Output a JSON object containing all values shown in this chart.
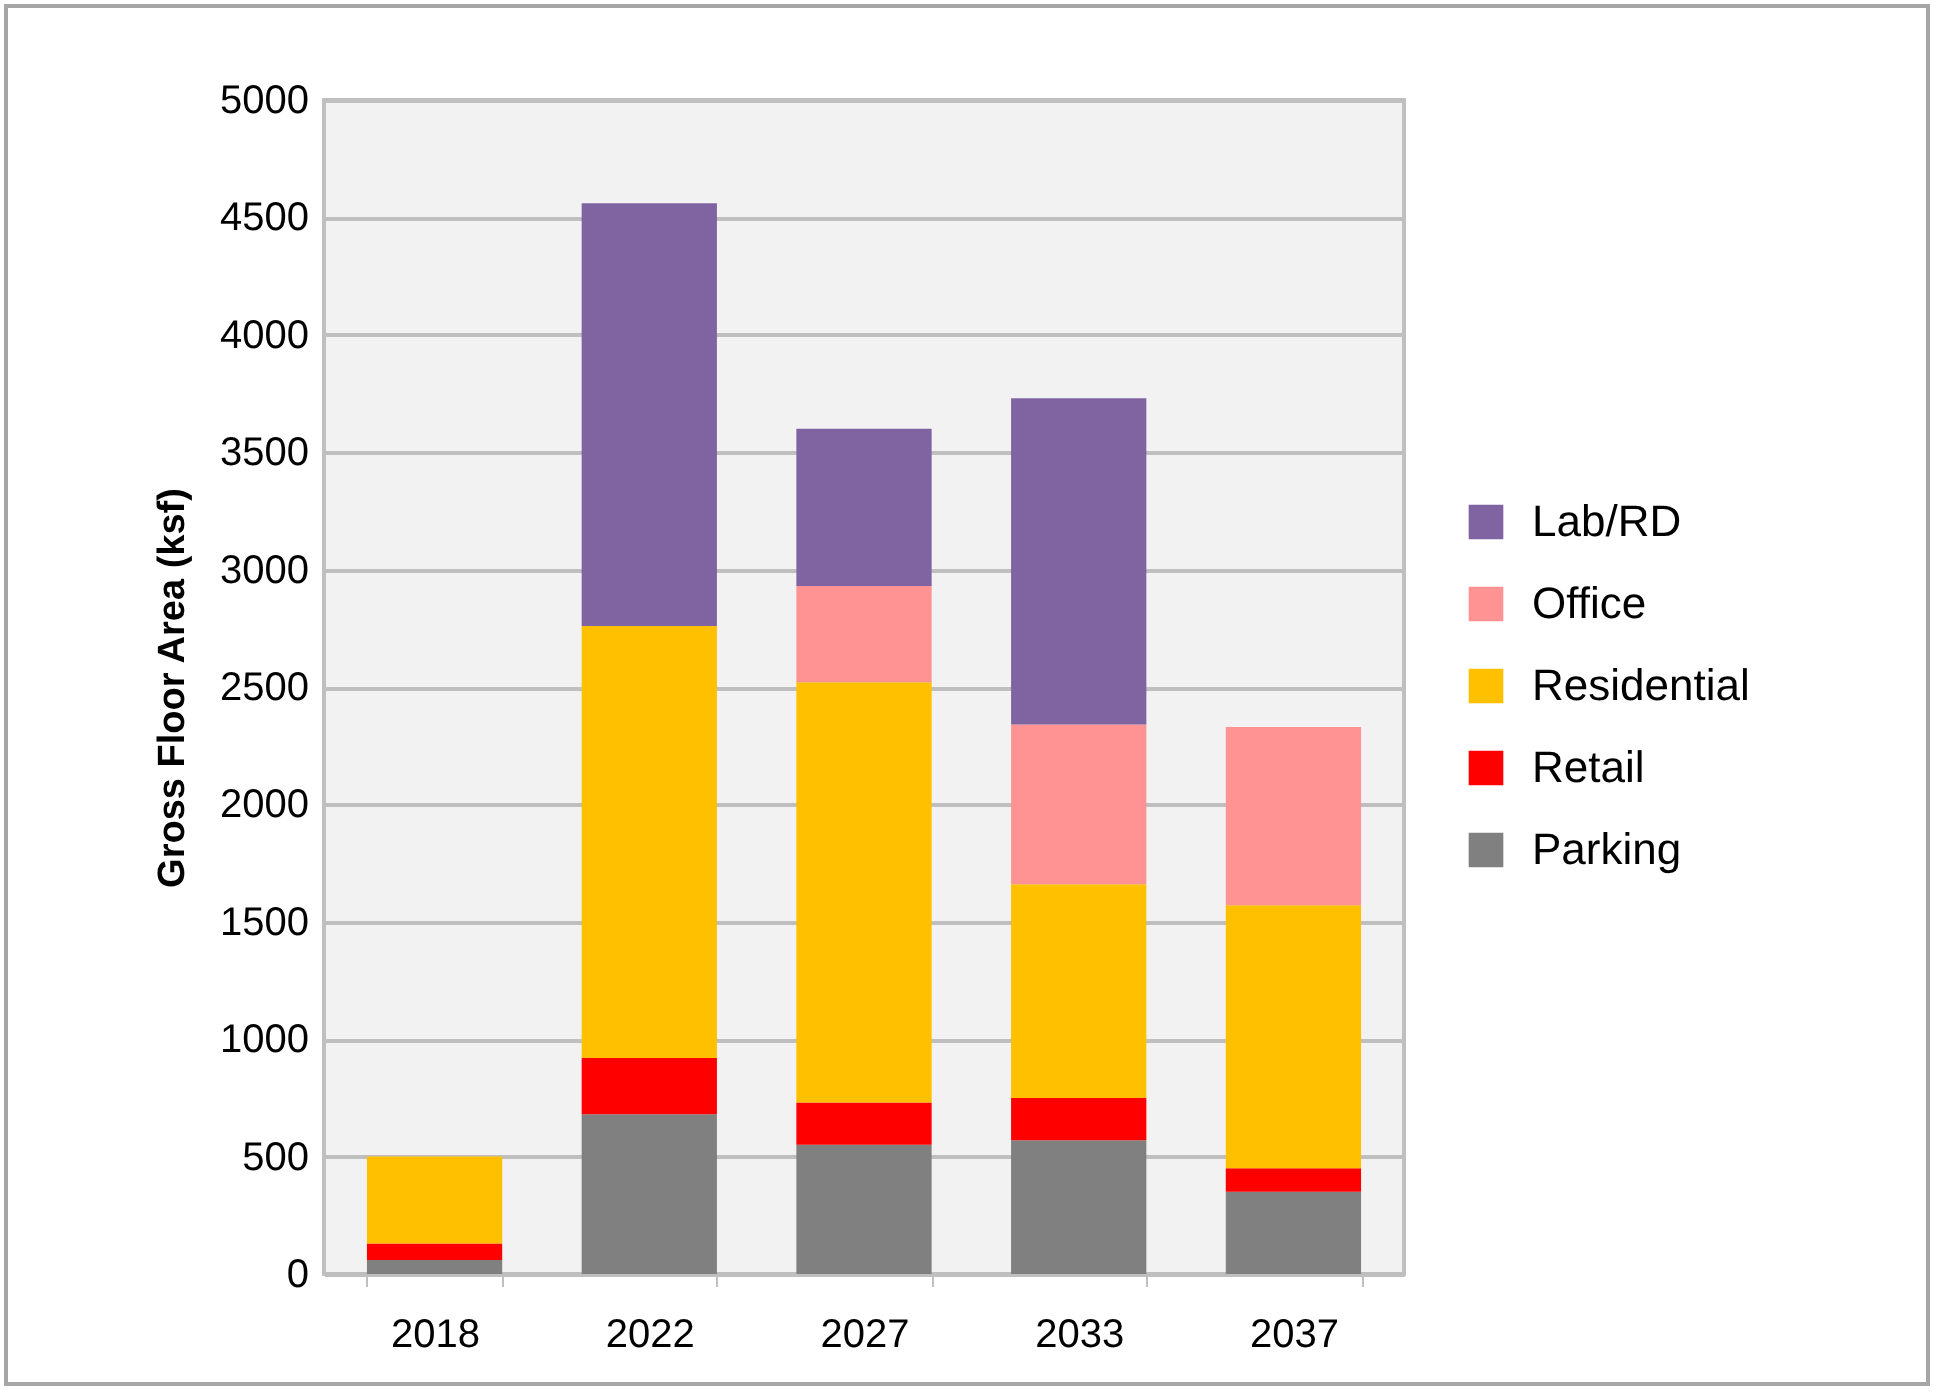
{
  "chart_data": {
    "type": "bar",
    "ylabel": "Gross Floor Area (ksf)",
    "categories": [
      "2018",
      "2022",
      "2027",
      "2033",
      "2037"
    ],
    "stacked": true,
    "series": [
      {
        "name": "Parking",
        "color": "#808080",
        "values": [
          60,
          680,
          550,
          570,
          350
        ]
      },
      {
        "name": "Retail",
        "color": "#ff0000",
        "values": [
          70,
          240,
          180,
          180,
          100
        ]
      },
      {
        "name": "Residential",
        "color": "#ffc000",
        "values": [
          370,
          1840,
          1790,
          910,
          1120
        ]
      },
      {
        "name": "Office",
        "color": "#ff9393",
        "values": [
          0,
          0,
          410,
          680,
          760
        ]
      },
      {
        "name": "Lab/RD",
        "color": "#8064a2",
        "values": [
          0,
          1800,
          670,
          1390,
          0
        ]
      }
    ],
    "ylim": [
      0,
      5000
    ],
    "yticks": [
      0,
      500,
      1000,
      1500,
      2000,
      2500,
      3000,
      3500,
      4000,
      4500,
      5000
    ],
    "grid": "y",
    "legend": "right"
  }
}
